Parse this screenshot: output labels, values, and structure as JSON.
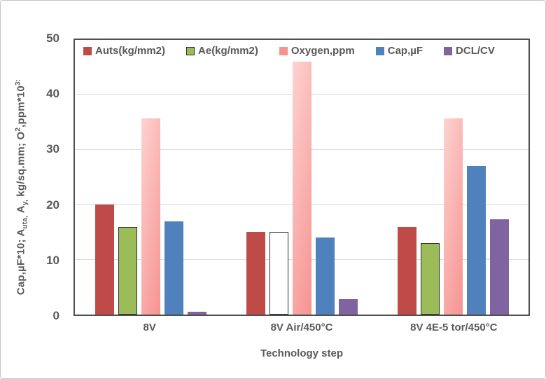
{
  "chart": {
    "background": "#ffffff",
    "outer_border_color": "#c6c6c6",
    "plot_border_color": "#4f4f4f",
    "gridline_color": "#dcdcdc",
    "text_color": "#595959"
  },
  "chart_data": {
    "type": "bar",
    "title": "",
    "xlabel": "Technology step",
    "ylabel_plain": "Cap,µF*10; Auta, Ay, kg/sq.mm; O2,ppm*10³:",
    "ylabel_segments": [
      {
        "t": "Cap,µF*10; A"
      },
      {
        "t": "uta,",
        "sub": true
      },
      {
        "t": " A"
      },
      {
        "t": "y,",
        "sub": true
      },
      {
        "t": " kg/sq.mm; O"
      },
      {
        "t": "2",
        "sup": true
      },
      {
        "t": ",ppm*10"
      },
      {
        "t": "3:",
        "sup": true
      }
    ],
    "categories": [
      "8V",
      "8V Air/450°C",
      "8V 4E-5 tor/450°C"
    ],
    "ylim": [
      0,
      50
    ],
    "yticks": [
      0,
      10,
      20,
      30,
      40,
      50
    ],
    "grid": true,
    "legend_position": "inside-top",
    "series": [
      {
        "name": "Auts(kg/mm2)",
        "color": "#be4b48",
        "values": [
          20,
          15,
          16
        ]
      },
      {
        "name": "Ae(kg/mm2)",
        "color": "#9cbb59",
        "border": "#2e2e2e",
        "values": [
          16,
          15,
          13
        ],
        "fill_overrides": {
          "1": "#ffffff"
        }
      },
      {
        "name": "Oxygen,ppm",
        "color": "#f79896",
        "gradient": [
          "#fdd2d0",
          "#f69391"
        ],
        "values": [
          35.7,
          46,
          35.7
        ]
      },
      {
        "name": "Cap,µF",
        "color": "#4f81bd",
        "values": [
          17,
          14,
          27
        ]
      },
      {
        "name": "DCL/CV",
        "color": "#8064a2",
        "values": [
          0.5,
          2.8,
          17.3
        ]
      }
    ]
  }
}
